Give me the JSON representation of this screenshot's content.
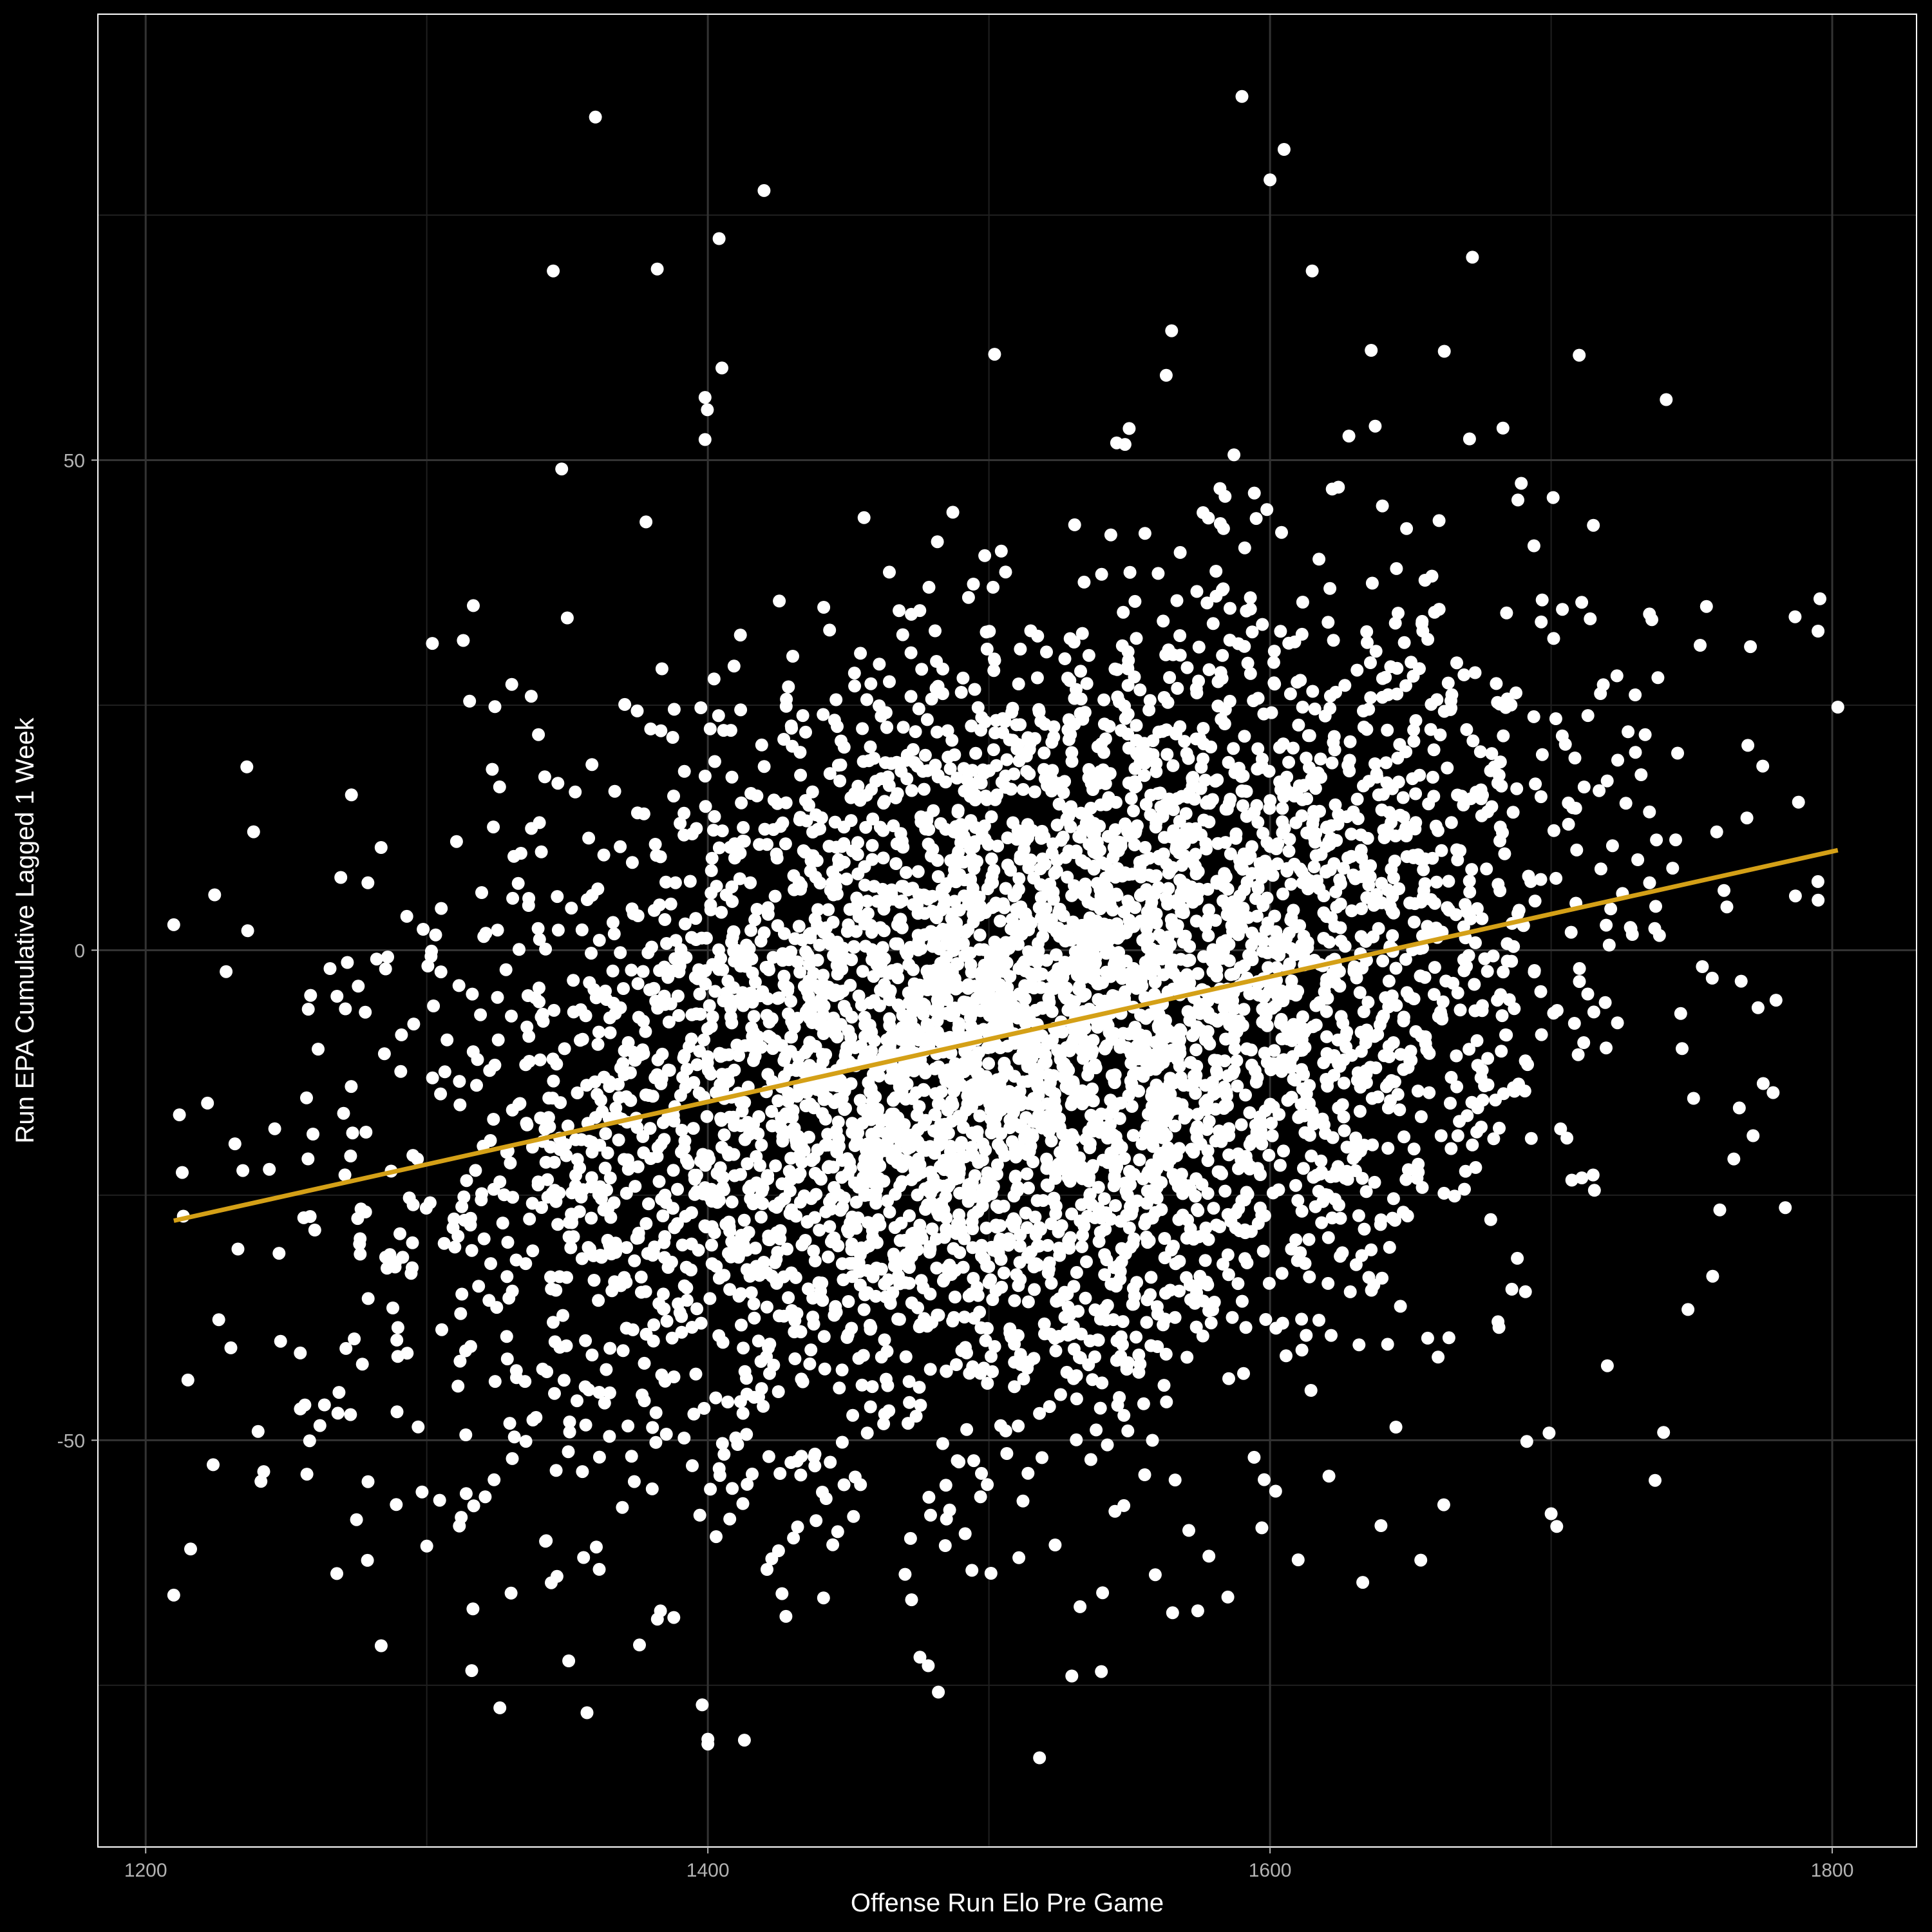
{
  "chart_data": {
    "type": "scatter",
    "title": "",
    "xlabel": "Offense Run Elo Pre Game",
    "ylabel": "Run EPA Cumulative Lagged 1 Week",
    "xlim": [
      1183,
      1830
    ],
    "ylim": [
      -91.5,
      95.5
    ],
    "x_ticks": [
      1200,
      1400,
      1600,
      1800
    ],
    "x_tick_labels": [
      "1200",
      "1400",
      "1600",
      "1800"
    ],
    "x_minor_ticks": [
      1300,
      1500,
      1700
    ],
    "y_ticks": [
      -50,
      0,
      50
    ],
    "y_tick_labels": [
      "-50",
      "0",
      "50"
    ],
    "y_minor_ticks": [
      -75,
      -25,
      25,
      75
    ],
    "grid": true,
    "legend": "none",
    "colors": {
      "background": "#000000",
      "panel_border": "#ffffff",
      "grid": "#333333",
      "points": "#ffffff",
      "fit_line": "#d4a017"
    },
    "fit_line": {
      "x": [
        1210,
        1802
      ],
      "y": [
        -27.6,
        10.2
      ]
    },
    "points": {
      "note_visible_outliers": [
        [
          1210,
          2.6
        ],
        [
          1212,
          -16.8
        ],
        [
          1210,
          -65.8
        ],
        [
          1216,
          -61.1
        ],
        [
          1222,
          -15.6
        ],
        [
          1224,
          -52.5
        ],
        [
          1226,
          -37.7
        ],
        [
          1236,
          18.7
        ],
        [
          1240,
          -49.1
        ],
        [
          1241,
          -54.2
        ],
        [
          1360,
          85.0
        ],
        [
          1345,
          69.3
        ],
        [
          1404,
          72.6
        ],
        [
          1420,
          77.5
        ],
        [
          1382,
          69.5
        ],
        [
          1590,
          87.1
        ],
        [
          1605,
          81.7
        ],
        [
          1600,
          78.6
        ],
        [
          1615,
          69.3
        ],
        [
          1672,
          70.7
        ],
        [
          1565,
          63.2
        ],
        [
          1502,
          60.8
        ],
        [
          1710,
          60.7
        ],
        [
          1662,
          61.1
        ],
        [
          1636,
          61.2
        ],
        [
          1405,
          59.4
        ],
        [
          1399,
          56.4
        ],
        [
          1399,
          52.1
        ],
        [
          1348,
          49.1
        ],
        [
          1378,
          43.7
        ],
        [
          1350,
          33.9
        ],
        [
          1302,
          31.3
        ],
        [
          1313,
          31.6
        ],
        [
          1242,
          -53.2
        ],
        [
          1248,
          -39.9
        ],
        [
          1255,
          -41.1
        ],
        [
          1262,
          -48.5
        ],
        [
          1275,
          -58.1
        ],
        [
          1268,
          -63.6
        ],
        [
          1300,
          -60.8
        ],
        [
          1330,
          -65.6
        ],
        [
          1316,
          -73.5
        ],
        [
          1326,
          -77.3
        ],
        [
          1357,
          -77.8
        ],
        [
          1400,
          -80.5
        ],
        [
          1400,
          -81.0
        ],
        [
          1413,
          -80.6
        ],
        [
          1398,
          -77.0
        ],
        [
          1482,
          -75.7
        ],
        [
          1518,
          -82.4
        ],
        [
          1540,
          -73.6
        ],
        [
          1585,
          -66.0
        ],
        [
          1602,
          -55.2
        ],
        [
          1610,
          -62.2
        ],
        [
          1633,
          -64.5
        ],
        [
          1740,
          -49.2
        ],
        [
          1720,
          -42.4
        ],
        [
          1700,
          -57.5
        ],
        [
          1702,
          -58.8
        ],
        [
          1760,
          -26.5
        ],
        [
          1765,
          -21.3
        ],
        [
          1780,
          -5.1
        ],
        [
          1795,
          5.1
        ],
        [
          1788,
          15.1
        ],
        [
          1802,
          24.8
        ],
        [
          1770,
          20.9
        ],
        [
          1745,
          20.1
        ],
        [
          1732,
          17.9
        ],
        [
          1735,
          34.3
        ],
        [
          1738,
          27.8
        ]
      ]
    }
  }
}
